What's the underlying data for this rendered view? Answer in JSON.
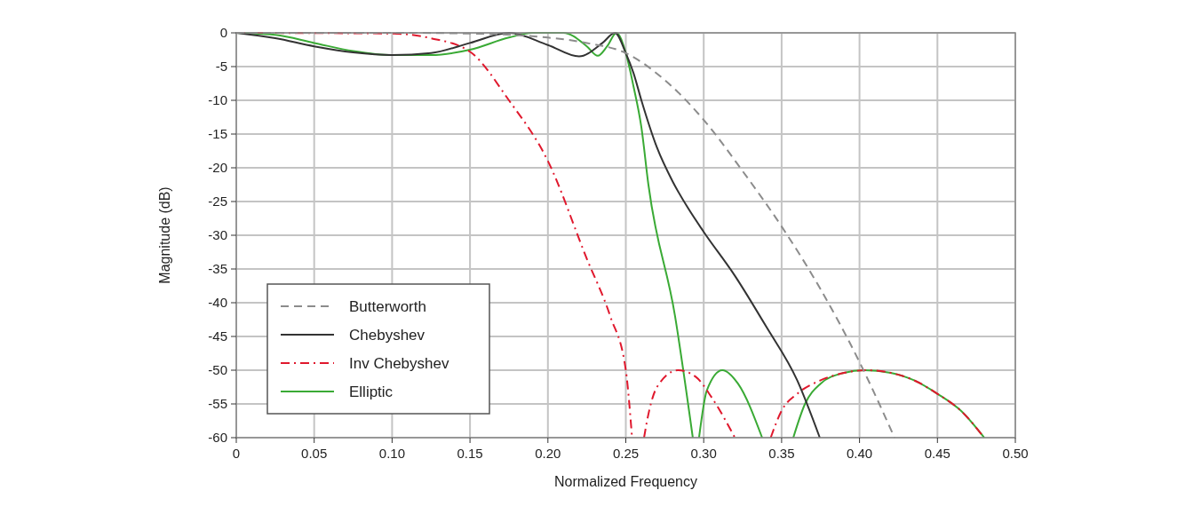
{
  "chart_data": {
    "type": "line",
    "xlabel": "Normalized Frequency",
    "ylabel": "Magnitude (dB)",
    "xlim": [
      0,
      0.5
    ],
    "ylim": [
      -60,
      0
    ],
    "xticks": [
      0,
      0.05,
      {
        "value": 0.1,
        "label": "0.10"
      },
      0.15,
      {
        "value": 0.2,
        "label": "0.20"
      },
      0.25,
      {
        "value": 0.3,
        "label": "0.30"
      },
      0.35,
      {
        "value": 0.4,
        "label": "0.40"
      },
      0.45,
      {
        "value": 0.5,
        "label": "0.50"
      }
    ],
    "yticks": [
      0,
      -5,
      -10,
      -15,
      -20,
      -25,
      -30,
      -35,
      -40,
      -45,
      -50,
      -55,
      -60
    ],
    "grid": true,
    "legend": "bottom left",
    "series": [
      {
        "name": "Butterworth",
        "color": "#8c8c8c",
        "line_style": "dashed",
        "x": [
          0,
          0.1,
          0.15,
          0.2,
          0.225,
          0.25,
          0.275,
          0.3,
          0.325,
          0.35,
          0.375,
          0.4,
          0.4225
        ],
        "values": [
          0,
          0,
          -0.1,
          -0.7,
          -1.5,
          -3,
          -7,
          -12.9,
          -20.5,
          -28.7,
          -38,
          -48.8,
          -60
        ]
      },
      {
        "name": "Chebyshev",
        "color": "#333333",
        "line_style": "solid",
        "x": [
          0,
          0.025,
          0.05,
          0.075,
          0.1,
          0.125,
          0.15,
          0.175,
          0.2,
          0.22,
          0.235,
          0.243,
          0.25,
          0.255,
          0.26,
          0.27,
          0.28,
          0.29,
          0.3,
          0.32,
          0.34,
          0.36,
          0.3745
        ],
        "values": [
          0,
          -0.8,
          -2,
          -2.9,
          -3.3,
          -3,
          -1.5,
          0,
          -1.8,
          -3.5,
          -1.5,
          0,
          -3,
          -6,
          -10,
          -17,
          -22,
          -26,
          -29.5,
          -36,
          -43.5,
          -51.5,
          -60
        ]
      },
      {
        "name": "Inv Chebyshev",
        "color": "#e0182d",
        "line_style": "dashdot",
        "x": [
          0,
          0.1,
          0.125,
          0.15,
          0.175,
          0.2,
          0.225,
          0.24,
          0.25,
          0.254,
          null,
          0.2617,
          0.265,
          0.27,
          0.2835,
          0.295,
          0.305,
          0.32,
          null,
          0.343,
          0.35,
          0.36,
          0.375,
          0.39,
          0.405,
          0.42,
          0.435,
          0.45,
          0.465,
          0.48
        ],
        "values": [
          0,
          -0.1,
          -0.8,
          -2.8,
          -10,
          -19,
          -33.5,
          -42,
          -50,
          -60,
          null,
          -60,
          -56,
          -52.5,
          -50,
          -51,
          -54,
          -60,
          null,
          -60,
          -56,
          -53.5,
          -51.5,
          -50.4,
          -50,
          -50.4,
          -51.5,
          -53.5,
          -56,
          -60
        ]
      },
      {
        "name": "Elliptic",
        "color": "#3aaa35",
        "line_style": "solid",
        "x": [
          0,
          0.025,
          0.05,
          0.075,
          0.1,
          0.125,
          0.15,
          0.175,
          0.19,
          0.21,
          0.225,
          0.232,
          0.238,
          0.244,
          0.25,
          0.255,
          0.26,
          0.2645,
          0.2816,
          0.293,
          null,
          0.297,
          0.302,
          0.312,
          0.322,
          0.3375,
          null,
          0.3575,
          0.365,
          0.375,
          0.39,
          0.403,
          0.42,
          0.435,
          0.45,
          0.465,
          0.48
        ],
        "values": [
          0,
          -0.3,
          -1.5,
          -2.7,
          -3.3,
          -3.3,
          -2.5,
          -0.7,
          0,
          0,
          -2,
          -3.4,
          -2,
          0,
          -3,
          -8,
          -14,
          -22.5,
          -42,
          -60,
          null,
          -60,
          -53,
          -50,
          -52,
          -60,
          null,
          -60,
          -55,
          -52,
          -50.4,
          -50,
          -50.4,
          -51.5,
          -53.5,
          -56,
          -60
        ]
      }
    ]
  }
}
